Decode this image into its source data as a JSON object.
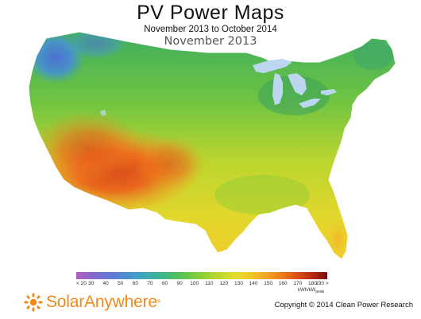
{
  "title": "PV Power Maps",
  "subtitle": "November 2013 to October 2014",
  "month": "November 2013",
  "legend": {
    "labels": [
      "< 20",
      "30",
      "40",
      "50",
      "60",
      "70",
      "80",
      "90",
      "100",
      "110",
      "120",
      "130",
      "140",
      "150",
      "160",
      "170",
      "180",
      "190 >"
    ],
    "units": "kWh/kW",
    "units_sub": "peak"
  },
  "brand": {
    "name": "SolarAnywhere",
    "mark": "®",
    "color": "#f08a1c"
  },
  "copyright": "Copyright © 2014 Clean Power Research",
  "colors": {
    "lakes": "#bcd6ef",
    "border": "#ffffff"
  }
}
